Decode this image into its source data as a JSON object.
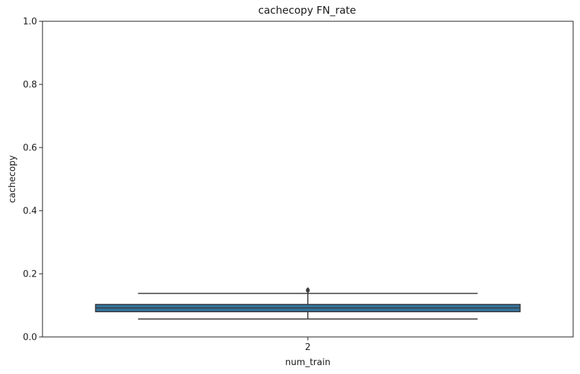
{
  "chart_data": {
    "type": "box",
    "title": "cachecopy FN_rate",
    "xlabel": "num_train",
    "ylabel": "cachecopy",
    "ylim": [
      0,
      1
    ],
    "yticks": [
      0.0,
      0.2,
      0.4,
      0.6,
      0.8,
      1.0
    ],
    "ytick_labels": [
      "0.0",
      "0.2",
      "0.4",
      "0.6",
      "0.8",
      "1.0"
    ],
    "categories": [
      "2"
    ],
    "boxes": [
      {
        "category": "2",
        "whisker_low": 0.057,
        "q1": 0.08,
        "median": 0.092,
        "q3": 0.103,
        "whisker_high": 0.138,
        "outliers": [
          0.146,
          0.15
        ]
      }
    ],
    "grid": false,
    "colors": {
      "box_fill": "#3274a1",
      "lines": "#3d3d3d"
    }
  }
}
